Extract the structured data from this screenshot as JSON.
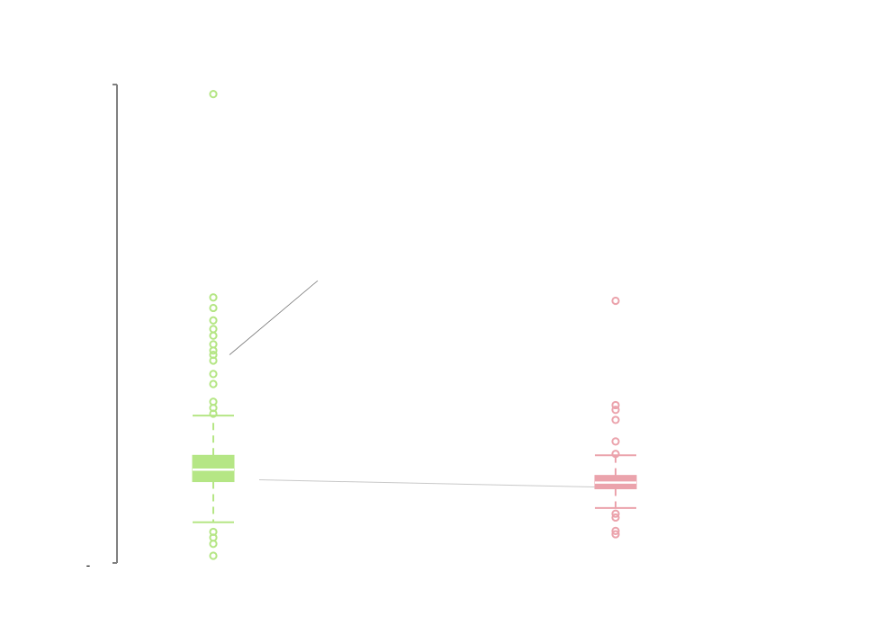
{
  "chart_data": {
    "type": "box",
    "title": "",
    "xlabel": "",
    "ylabel": "",
    "y_tick_label": "-",
    "ylim": [
      0,
      100
    ],
    "grid": false,
    "legend": "none",
    "categories": [
      "",
      ""
    ],
    "series": [
      {
        "color": "#b5e685",
        "whisker_low": 8.5,
        "q1": 17.0,
        "median": 19.5,
        "q3": 22.5,
        "whisker_high": 30.8,
        "outliers": [
          98.0,
          55.5,
          53.3,
          50.7,
          48.9,
          47.5,
          45.7,
          44.4,
          43.5,
          42.3,
          39.5,
          37.4,
          33.7,
          32.4,
          31.2,
          6.5,
          5.3,
          4.0,
          1.5
        ]
      },
      {
        "color": "#eba3ac",
        "whisker_low": 11.5,
        "q1": 15.5,
        "median": 16.8,
        "q3": 18.3,
        "whisker_high": 22.5,
        "outliers": [
          54.8,
          33.0,
          32.0,
          29.9,
          25.4,
          22.8,
          10.3,
          9.5,
          6.7,
          6.0
        ]
      }
    ],
    "connector_color": "#c8c8c8",
    "axis_color": "#808080"
  }
}
